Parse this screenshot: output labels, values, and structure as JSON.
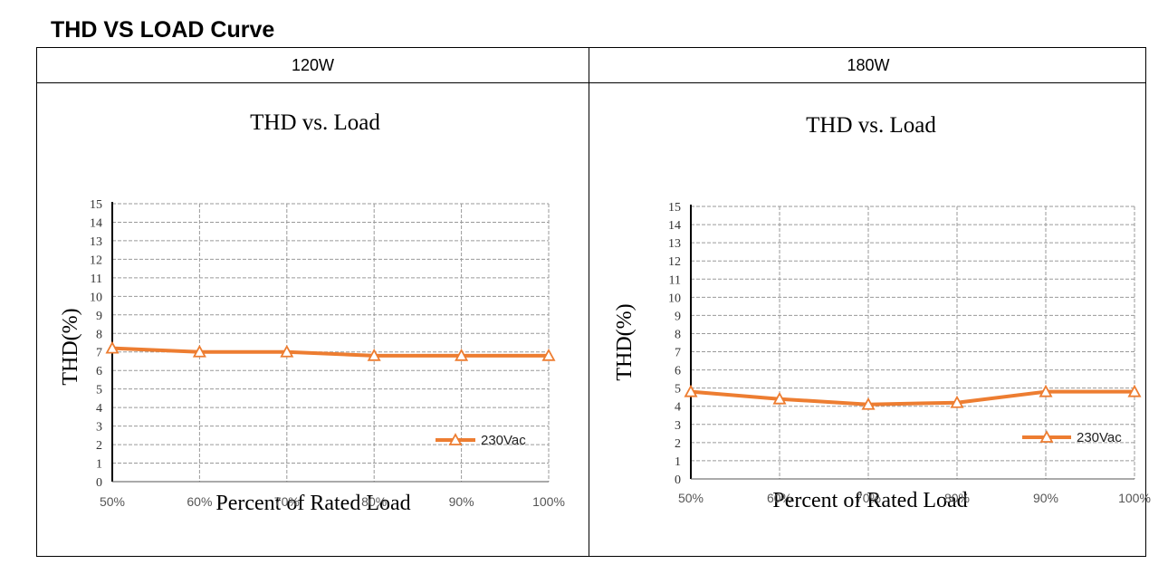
{
  "page": {
    "title": "THD VS LOAD Curve"
  },
  "colors": {
    "series": "#ED7D31",
    "grid": "#9A9A9A",
    "axis": "#000000"
  },
  "panels": [
    {
      "header": "120W",
      "chart_title": "THD vs. Load",
      "xlabel": "Percent of Rated Load",
      "ylabel": "THD(%)"
    },
    {
      "header": "180W",
      "chart_title": "THD vs. Load",
      "xlabel": "Percent of Rated Load",
      "ylabel": "THD(%)"
    }
  ],
  "chart_data": [
    {
      "type": "line",
      "title": "THD vs. Load",
      "xlabel": "Percent of Rated Load",
      "ylabel": "THD(%)",
      "categories": [
        "50%",
        "60%",
        "70%",
        "80%",
        "90%",
        "100%"
      ],
      "ylim": [
        0,
        15
      ],
      "yticks": [
        "0",
        "1",
        "2",
        "3",
        "4",
        "5",
        "6",
        "7",
        "8",
        "9",
        "10",
        "11",
        "12",
        "13",
        "14",
        "15"
      ],
      "grid": true,
      "legend_position": "bottom-right",
      "series": [
        {
          "name": "230Vac",
          "marker": "triangle",
          "values": [
            7.2,
            7.0,
            7.0,
            6.8,
            6.8,
            6.8
          ]
        }
      ]
    },
    {
      "type": "line",
      "title": "THD vs. Load",
      "xlabel": "Percent of Rated Load",
      "ylabel": "THD(%)",
      "categories": [
        "50%",
        "60%",
        "70%",
        "80%",
        "90%",
        "100%"
      ],
      "ylim": [
        0,
        15
      ],
      "yticks": [
        "0",
        "1",
        "2",
        "3",
        "4",
        "5",
        "6",
        "7",
        "8",
        "9",
        "10",
        "11",
        "12",
        "13",
        "14",
        "15"
      ],
      "grid": true,
      "legend_position": "bottom-right",
      "series": [
        {
          "name": "230Vac",
          "marker": "triangle",
          "values": [
            4.8,
            4.4,
            4.1,
            4.2,
            4.8,
            4.8
          ]
        }
      ]
    }
  ]
}
